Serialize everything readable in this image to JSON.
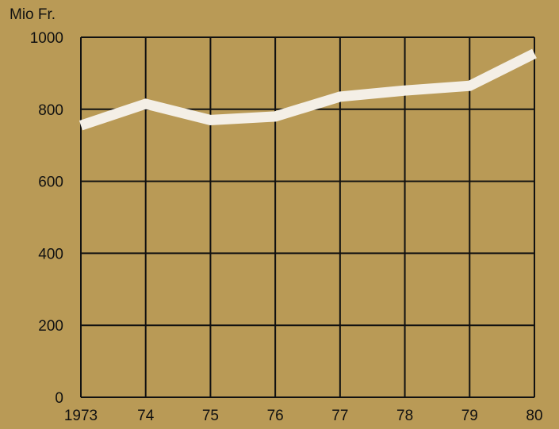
{
  "colors": {
    "background": "#b99a56",
    "grid": "#111111",
    "line": "#f4efe6",
    "text": "#111111"
  },
  "chart_data": {
    "type": "line",
    "y_unit_label": "Mio Fr.",
    "x": [
      "1973",
      "1974",
      "1975",
      "1976",
      "1977",
      "1978",
      "1979",
      "1980"
    ],
    "x_tick_labels": [
      "1973",
      "74",
      "75",
      "76",
      "77",
      "78",
      "79",
      "80"
    ],
    "series": [
      {
        "values": [
          755,
          815,
          770,
          780,
          835,
          852,
          865,
          955
        ]
      }
    ],
    "ylim": [
      0,
      1000
    ],
    "y_ticks": [
      0,
      200,
      400,
      600,
      800,
      1000
    ],
    "y_tick_labels": [
      "0",
      "200",
      "400",
      "600",
      "800",
      "1000"
    ],
    "grid": true,
    "legend": false
  }
}
